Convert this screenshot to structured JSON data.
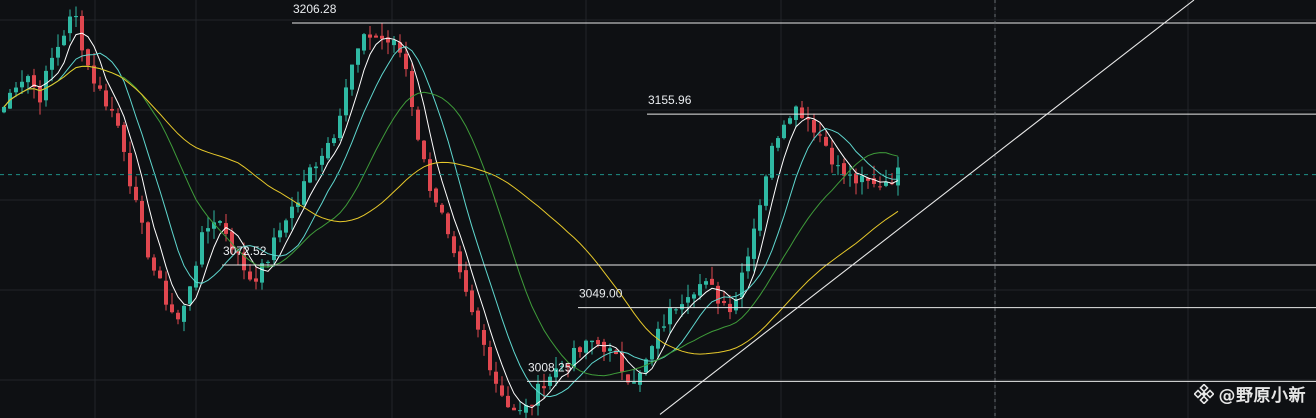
{
  "chart_data": {
    "type": "candlestick",
    "title": "",
    "xlabel": "",
    "ylabel": "",
    "ylim": [
      2988,
      3219
    ],
    "grid": true,
    "price_levels": [
      {
        "label": "3206.28",
        "value": 3206.28
      },
      {
        "label": "3155.96",
        "value": 3155.96
      },
      {
        "label": "3072.52",
        "value": 3072.52
      },
      {
        "label": "3049.00",
        "value": 3049.0
      },
      {
        "label": "3008.25",
        "value": 3008.25
      }
    ],
    "current_price_marker": 3122.5,
    "trendline": {
      "from_value": 2990,
      "to_value": 3219
    },
    "close_path": [
      3160,
      3174,
      3178,
      3165,
      3185,
      3200,
      3212,
      3185,
      3170,
      3160,
      3145,
      3110,
      3085,
      3065,
      3050,
      3040,
      3068,
      3090,
      3100,
      3090,
      3075,
      3065,
      3070,
      3085,
      3100,
      3108,
      3125,
      3135,
      3145,
      3170,
      3190,
      3200,
      3198,
      3195,
      3188,
      3150,
      3120,
      3105,
      3080,
      3060,
      3040,
      3025,
      3005,
      2995,
      2990,
      2998,
      3010,
      3015,
      3020,
      3025,
      3030,
      3028,
      3020,
      3012,
      3010,
      3025,
      3040,
      3050,
      3058,
      3062,
      3060,
      3052,
      3050,
      3075,
      3100,
      3130,
      3150,
      3160,
      3157,
      3148,
      3138,
      3124,
      3120,
      3118,
      3116,
      3120,
      3123
    ],
    "moving_averages": [
      {
        "color": "#ffffff",
        "period": 5
      },
      {
        "color": "#5fd7cf",
        "period": 10
      },
      {
        "color": "#3f9c3a",
        "period": 20
      },
      {
        "color": "#e7c92b",
        "period": 40
      }
    ],
    "colors": {
      "up": "#2fb9a3",
      "down": "#e0474f",
      "background": "#0e1013",
      "grid": "#222529",
      "level_line": "#e8e8e8",
      "marker": "#1f8f86"
    }
  },
  "watermark": {
    "text": "@野原小新",
    "icon": "binance-icon"
  }
}
